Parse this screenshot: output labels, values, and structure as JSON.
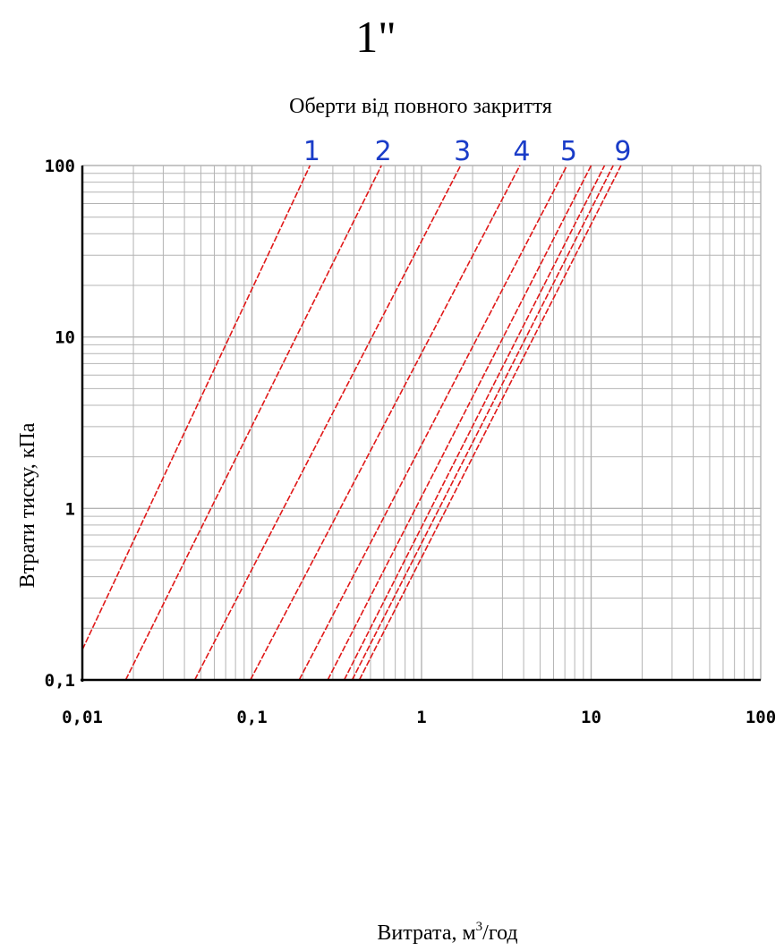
{
  "chart_data": {
    "type": "line",
    "size_label": "1\"",
    "title": "Оберти від повного закриття",
    "xlabel_main": "Витрата, м",
    "xlabel_sup": "3",
    "xlabel_tail": "/год",
    "ylabel": "Втрати тиску, кПа",
    "x_scale": "log",
    "y_scale": "log",
    "xlim": [
      0.01,
      100
    ],
    "ylim": [
      0.1,
      100
    ],
    "grid": true,
    "x_ticks": [
      {
        "value": 0.01,
        "label": "0,01"
      },
      {
        "value": 0.1,
        "label": "0,1"
      },
      {
        "value": 1,
        "label": "1"
      },
      {
        "value": 10,
        "label": "10"
      },
      {
        "value": 100,
        "label": "100"
      }
    ],
    "y_ticks": [
      {
        "value": 0.1,
        "label": "0,1"
      },
      {
        "value": 1,
        "label": "1"
      },
      {
        "value": 10,
        "label": "10"
      },
      {
        "value": 100,
        "label": "100"
      }
    ],
    "colors": {
      "curves": "#e01818",
      "labels": "#1a3cc8",
      "grid": "#b4b4b4",
      "axes": "#000000"
    },
    "series": [
      {
        "name": "1",
        "x": [
          0.01,
          0.22
        ],
        "y": [
          0.15,
          100
        ]
      },
      {
        "name": "2",
        "x": [
          0.018,
          0.58
        ],
        "y": [
          0.1,
          100
        ]
      },
      {
        "name": "3",
        "x": [
          0.046,
          1.7
        ],
        "y": [
          0.1,
          100
        ]
      },
      {
        "name": "4",
        "x": [
          0.098,
          3.8
        ],
        "y": [
          0.1,
          100
        ]
      },
      {
        "name": "5",
        "x": [
          0.19,
          7.2
        ],
        "y": [
          0.1,
          100
        ]
      },
      {
        "name": "",
        "x": [
          0.28,
          10
        ],
        "y": [
          0.1,
          100
        ]
      },
      {
        "name": "",
        "x": [
          0.35,
          12
        ],
        "y": [
          0.1,
          100
        ]
      },
      {
        "name": "",
        "x": [
          0.39,
          13.5
        ],
        "y": [
          0.1,
          100
        ]
      },
      {
        "name": "9",
        "x": [
          0.43,
          15
        ],
        "y": [
          0.1,
          100
        ]
      }
    ]
  }
}
